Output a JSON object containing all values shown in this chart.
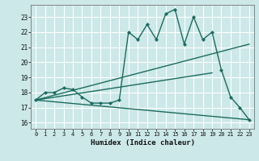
{
  "xlabel": "Humidex (Indice chaleur)",
  "bg_color": "#cce8e8",
  "grid_color": "#ffffff",
  "line_color": "#1a6b5e",
  "x_ticks": [
    0,
    1,
    2,
    3,
    4,
    5,
    6,
    7,
    8,
    9,
    10,
    11,
    12,
    13,
    14,
    15,
    16,
    17,
    18,
    19,
    20,
    21,
    22,
    23
  ],
  "y_ticks": [
    16,
    17,
    18,
    19,
    20,
    21,
    22,
    23
  ],
  "xlim": [
    -0.5,
    23.5
  ],
  "ylim": [
    15.6,
    23.8
  ],
  "line1_x": [
    0,
    1,
    2,
    3,
    4,
    5,
    6,
    7,
    8,
    9,
    10,
    11,
    12,
    13,
    14,
    15,
    16,
    17,
    18,
    19,
    20,
    21,
    22,
    23
  ],
  "line1_y": [
    17.5,
    18.0,
    18.0,
    18.3,
    18.2,
    17.7,
    17.3,
    17.3,
    17.3,
    17.5,
    22.0,
    21.5,
    22.5,
    21.5,
    23.2,
    23.5,
    21.2,
    23.0,
    21.5,
    22.0,
    19.5,
    17.7,
    17.0,
    16.2
  ],
  "line2_x": [
    0,
    23
  ],
  "line2_y": [
    17.5,
    21.2
  ],
  "line3_x": [
    0,
    19
  ],
  "line3_y": [
    17.5,
    19.3
  ],
  "line4_x": [
    0,
    23
  ],
  "line4_y": [
    17.5,
    16.2
  ]
}
